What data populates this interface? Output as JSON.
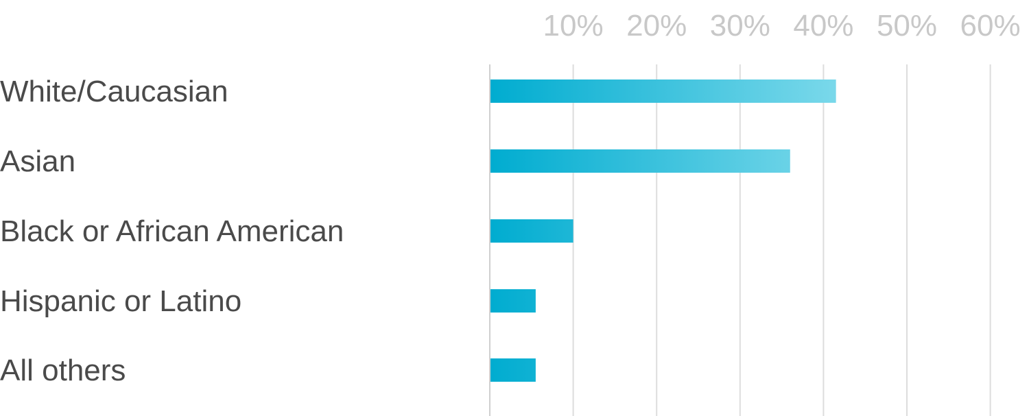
{
  "chart_data": {
    "type": "bar",
    "orientation": "horizontal",
    "title": "",
    "xlabel": "",
    "ylabel": "",
    "categories": [
      "White/Caucasian",
      "Asian",
      "Black or African American",
      "Hispanic or Latino",
      "All others"
    ],
    "values": [
      41.5,
      36,
      10,
      5.5,
      5.5
    ],
    "unit": "%",
    "xlim": [
      0,
      60
    ],
    "ticks": [
      10,
      20,
      30,
      40,
      50,
      60
    ],
    "tick_labels": [
      "10%",
      "20%",
      "30%",
      "40%",
      "50%",
      "60%"
    ],
    "grid": true,
    "tick_position": "top",
    "colors": {
      "bar_start": "#00acd0",
      "bar_end": "#7dd9ea",
      "label": "#4a4a4a",
      "tick": "#c8c8c8",
      "grid": "#dddddd"
    }
  }
}
